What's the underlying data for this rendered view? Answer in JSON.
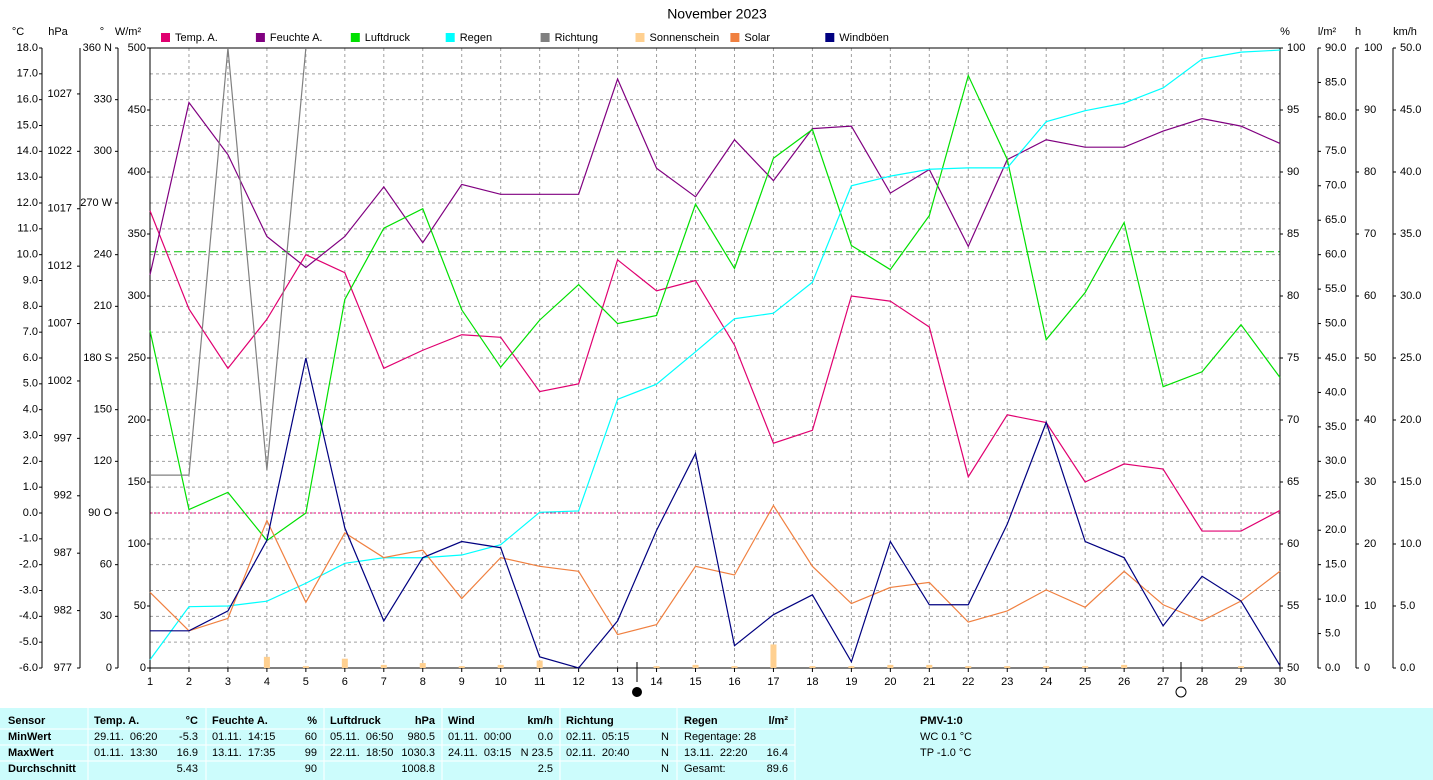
{
  "chart_data": {
    "type": "line",
    "title": "November 2023",
    "x": [
      1,
      2,
      3,
      4,
      5,
      6,
      7,
      8,
      9,
      10,
      11,
      12,
      13,
      14,
      15,
      16,
      17,
      18,
      19,
      20,
      21,
      22,
      23,
      24,
      25,
      26,
      27,
      28,
      29,
      30
    ],
    "xlim": [
      1,
      30
    ],
    "grid": true,
    "axes": [
      {
        "id": "temp",
        "label": "°C",
        "color": "#e00070",
        "lim": [
          -6,
          18
        ],
        "ticks": [
          {
            "value": -6,
            "label": "-6.0"
          },
          {
            "value": -5,
            "label": "-5.0"
          },
          {
            "value": -4,
            "label": "-4.0"
          },
          {
            "value": -3,
            "label": "-3.0"
          },
          {
            "value": -2,
            "label": "-2.0"
          },
          {
            "value": -1,
            "label": "-1.0"
          },
          {
            "value": 0,
            "label": "0.0"
          },
          {
            "value": 1,
            "label": "1.0"
          },
          {
            "value": 2,
            "label": "2.0"
          },
          {
            "value": 3,
            "label": "3.0"
          },
          {
            "value": 4,
            "label": "4.0"
          },
          {
            "value": 5,
            "label": "5.0"
          },
          {
            "value": 6,
            "label": "6.0"
          },
          {
            "value": 7,
            "label": "7.0"
          },
          {
            "value": 8,
            "label": "8.0"
          },
          {
            "value": 9,
            "label": "9.0"
          },
          {
            "value": 10,
            "label": "10.0"
          },
          {
            "value": 11,
            "label": "11.0"
          },
          {
            "value": 12,
            "label": "12.0"
          },
          {
            "value": 13,
            "label": "13.0"
          },
          {
            "value": 14,
            "label": "14.0"
          },
          {
            "value": 15,
            "label": "15.0"
          },
          {
            "value": 16,
            "label": "16.0"
          },
          {
            "value": 17,
            "label": "17.0"
          },
          {
            "value": 18,
            "label": "18.0"
          }
        ]
      },
      {
        "id": "hpa",
        "label": "hPa",
        "color": "#00b000",
        "lim": [
          977,
          1031
        ],
        "ticks": [
          977,
          982,
          987,
          992,
          997,
          1002,
          1007,
          1012,
          1017,
          1022,
          1027
        ]
      },
      {
        "id": "dir",
        "label": "°",
        "color": "#606060",
        "lim": [
          0,
          360
        ],
        "ticks": [
          0,
          30,
          60,
          {
            "value": 90,
            "label": "90 O"
          },
          120,
          150,
          {
            "value": 180,
            "label": "180 S"
          },
          210,
          240,
          {
            "value": 270,
            "label": "270 W"
          },
          300,
          330,
          {
            "value": 360,
            "label": "360 N"
          }
        ]
      },
      {
        "id": "solar",
        "label": "W/m²",
        "color": "#f07020",
        "lim": [
          0,
          500
        ],
        "ticks": [
          0,
          50,
          100,
          150,
          200,
          250,
          300,
          350,
          400,
          450,
          500
        ]
      },
      {
        "id": "hum",
        "label": "%",
        "color": "#800080",
        "lim": [
          50,
          100
        ],
        "ticks": [
          50,
          55,
          60,
          65,
          70,
          75,
          80,
          85,
          90,
          95,
          100
        ]
      },
      {
        "id": "rain",
        "label": "l/m²",
        "color": "#00d8e0",
        "lim": [
          0,
          90
        ],
        "ticks": [
          {
            "value": 0,
            "label": "0.0"
          },
          {
            "value": 5,
            "label": "5.0"
          },
          {
            "value": 10,
            "label": "10.0"
          },
          {
            "value": 15,
            "label": "15.0"
          },
          {
            "value": 20,
            "label": "20.0"
          },
          {
            "value": 25,
            "label": "25.0"
          },
          {
            "value": 30,
            "label": "30.0"
          },
          {
            "value": 35,
            "label": "35.0"
          },
          {
            "value": 40,
            "label": "40.0"
          },
          {
            "value": 45,
            "label": "45.0"
          },
          {
            "value": 50,
            "label": "50.0"
          },
          {
            "value": 55,
            "label": "55.0"
          },
          {
            "value": 60,
            "label": "60.0"
          },
          {
            "value": 65,
            "label": "65.0"
          },
          {
            "value": 70,
            "label": "70.0"
          },
          {
            "value": 75,
            "label": "75.0"
          },
          {
            "value": 80,
            "label": "80.0"
          },
          {
            "value": 85,
            "label": "85.0"
          },
          {
            "value": 90,
            "label": "90.0"
          }
        ]
      },
      {
        "id": "sun",
        "label": "h",
        "color": "#f8c888",
        "lim": [
          0,
          100
        ],
        "ticks": [
          0,
          10,
          20,
          30,
          40,
          50,
          60,
          70,
          80,
          90,
          100
        ]
      },
      {
        "id": "wind",
        "label": "km/h",
        "color": "#000080",
        "lim": [
          0,
          50
        ],
        "ticks": [
          {
            "value": 0,
            "label": "0.0"
          },
          {
            "value": 5,
            "label": "5.0"
          },
          {
            "value": 10,
            "label": "10.0"
          },
          {
            "value": 15,
            "label": "15.0"
          },
          {
            "value": 20,
            "label": "20.0"
          },
          {
            "value": 25,
            "label": "25.0"
          },
          {
            "value": 30,
            "label": "30.0"
          },
          {
            "value": 35,
            "label": "35.0"
          },
          {
            "value": 40,
            "label": "40.0"
          },
          {
            "value": 45,
            "label": "45.0"
          },
          {
            "value": 50,
            "label": "50.0"
          }
        ]
      }
    ],
    "reference_lines": [
      {
        "axis": "hpa",
        "value": 1013.25,
        "color": "#00c000",
        "style": "dashed"
      },
      {
        "axis": "temp",
        "value": 0,
        "color": "#e00070",
        "style": "dotted"
      }
    ],
    "series": [
      {
        "name": "Temp. A.",
        "color": "#e00070",
        "axis": "temp",
        "style": "line",
        "values": [
          11.7,
          7.9,
          5.6,
          7.5,
          10.0,
          9.3,
          5.6,
          6.3,
          6.9,
          6.8,
          4.7,
          5.0,
          9.8,
          8.6,
          9.0,
          6.5,
          2.7,
          3.2,
          8.4,
          8.2,
          7.2,
          1.4,
          3.8,
          3.5,
          1.2,
          1.9,
          1.7,
          -0.7,
          -0.7,
          0.1
        ]
      },
      {
        "name": "Feuchte A.",
        "color": "#800080",
        "axis": "hum",
        "style": "line",
        "values": [
          81.7,
          95.6,
          91.4,
          84.8,
          82.3,
          84.8,
          88.8,
          84.3,
          89.0,
          88.2,
          88.2,
          88.2,
          97.5,
          90.3,
          88.0,
          92.6,
          89.3,
          93.5,
          93.7,
          88.3,
          90.2,
          84.0,
          91.0,
          92.6,
          92.0,
          92.0,
          93.3,
          94.3,
          93.7,
          92.3
        ]
      },
      {
        "name": "Luftdruck",
        "color": "#00e000",
        "axis": "hpa",
        "style": "line",
        "values": [
          1006.4,
          990.8,
          992.3,
          988.1,
          990.5,
          1009.1,
          1015.3,
          1017.0,
          1008.2,
          1003.2,
          1007.3,
          1010.4,
          1007.0,
          1007.7,
          1017.4,
          1011.8,
          1021.4,
          1023.9,
          1013.8,
          1011.7,
          1016.4,
          1028.6,
          1021.3,
          1005.6,
          1009.7,
          1015.8,
          1001.5,
          1002.8,
          1006.9,
          1002.3
        ]
      },
      {
        "name": "Regen",
        "color": "#00ffff",
        "axis": "rain",
        "style": "line",
        "values": [
          1.2,
          8.9,
          9.0,
          9.7,
          12.3,
          15.2,
          16.0,
          16.0,
          16.4,
          17.9,
          22.6,
          22.8,
          39.0,
          41.2,
          45.9,
          50.7,
          51.5,
          56.0,
          70.0,
          71.4,
          72.4,
          72.6,
          72.6,
          79.3,
          80.9,
          82.0,
          84.2,
          88.4,
          89.4,
          89.7
        ]
      },
      {
        "name": "Richtung",
        "color": "#808080",
        "axis": "dir",
        "style": "line",
        "values": [
          112,
          112,
          360,
          115,
          360,
          null,
          null,
          null,
          null,
          null,
          null,
          null,
          null,
          null,
          null,
          null,
          null,
          null,
          null,
          null,
          null,
          null,
          null,
          null,
          null,
          null,
          null,
          null,
          null,
          null
        ]
      },
      {
        "name": "Sonnenschein",
        "color": "#ffd090",
        "axis": "sun",
        "style": "bar",
        "values": [
          0,
          0,
          0,
          1.8,
          0.3,
          1.5,
          0.5,
          0.8,
          0.3,
          0.5,
          1.2,
          0,
          0,
          0.3,
          0.5,
          0.3,
          3.8,
          0.3,
          0.3,
          0.5,
          0.5,
          0.3,
          0.3,
          0.3,
          0.3,
          0.5,
          0,
          0,
          0.3,
          0
        ]
      },
      {
        "name": "Solar",
        "color": "#f08040",
        "axis": "solar",
        "style": "line",
        "values": [
          61,
          30,
          40,
          119,
          53,
          109,
          89,
          95,
          56,
          89,
          82,
          78,
          27,
          35,
          82,
          75,
          131,
          82,
          52,
          65,
          69,
          37,
          46,
          63,
          49,
          78,
          51,
          38,
          54,
          78
        ]
      },
      {
        "name": "Windböen",
        "color": "#000080",
        "axis": "wind",
        "style": "line",
        "values": [
          3.0,
          3.0,
          4.6,
          10.3,
          25.0,
          11.3,
          3.8,
          8.9,
          10.2,
          9.7,
          0.9,
          0,
          3.8,
          11.1,
          17.3,
          1.8,
          4.3,
          5.9,
          0.5,
          10.2,
          5.1,
          5.1,
          11.6,
          19.8,
          10.2,
          8.9,
          3.4,
          7.4,
          5.4,
          0.2
        ]
      }
    ]
  },
  "table": {
    "row_labels": [
      "Sensor",
      "MinWert",
      "MaxWert",
      "Durchschnitt"
    ],
    "columns": [
      {
        "title": "Temp. A.",
        "unit": "°C",
        "min_time": "29.11.  06:20",
        "min": "-5.3",
        "max_time": "01.11.  13:30",
        "max": "16.9",
        "avg": "5.43"
      },
      {
        "title": "Feuchte A.",
        "unit": "%",
        "min_time": "01.11.  14:15",
        "min": "60",
        "max_time": "13.11.  17:35",
        "max": "99",
        "avg": "90"
      },
      {
        "title": "Luftdruck",
        "unit": "hPa",
        "min_time": "05.11.  06:50",
        "min": "980.5",
        "max_time": "22.11.  18:50",
        "max": "1030.3",
        "avg": "1008.8"
      },
      {
        "title": "Wind",
        "unit": "km/h",
        "min_time": "01.11.  00:00",
        "min": "0.0",
        "max_time": "24.11.  03:15",
        "max": "N 23.5",
        "avg": "2.5"
      },
      {
        "title": "Richtung",
        "min_time": "02.11.  05:15",
        "min": "N",
        "max_time": "02.11.  20:40",
        "max": "N",
        "avg": "N"
      },
      {
        "title": "Regen",
        "unit": "l/m²",
        "min_time": "Regentage: 28",
        "max_time": "13.11.  22:20",
        "max": "16.4",
        "avg_label": "Gesamt:",
        "avg": "89.6"
      },
      {
        "title": "PMV-1:0",
        "min_time": "WC 0.1 °C",
        "max_time": "TP -1.0 °C"
      }
    ]
  }
}
